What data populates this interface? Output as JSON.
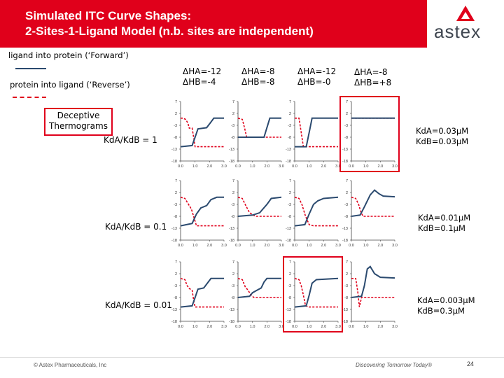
{
  "title": {
    "line1": "Simulated ITC Curve Shapes:",
    "line2": "2-Sites-1-Ligand Model (n.b. sites are independent)"
  },
  "logo": {
    "text": "astex"
  },
  "legend": {
    "forward": "ligand into protein (‘Forward’)",
    "reverse": "protein into ligand (‘Reverse’)",
    "forward_color": "#2b4a6f",
    "reverse_color": "#e0001b"
  },
  "deceptive": {
    "line1": "Deceptive",
    "line2": "Thermograms"
  },
  "columns": [
    {
      "ha": "ΔHA=-12",
      "hb": "ΔHB=-4"
    },
    {
      "ha": "ΔHA=-8",
      "hb": "ΔHB=-8"
    },
    {
      "ha": "ΔHA=-12",
      "hb": "ΔHB=-0"
    },
    {
      "ha": "ΔHA=-8",
      "hb": "ΔHB=+8"
    }
  ],
  "rows": [
    {
      "ratio": "KdA/KdB = 1",
      "kda": "KdA=0.03μM",
      "kdb": "KdB=0.03μM"
    },
    {
      "ratio": "KdA/KdB = 0.1",
      "kda": "KdA=0.01μM",
      "kdb": "KdB=0.1μM"
    },
    {
      "ratio": "KdA/KdB = 0.01",
      "kda": "KdA=0.003μM",
      "kdb": "KdB=0.3μM"
    }
  ],
  "footer": {
    "copyright": "© Astex Pharmaceuticals, Inc",
    "tagline": "Discovering Tomorrow Today®",
    "page": "24"
  },
  "chart_data": {
    "type": "line",
    "layout": "grid",
    "grid_rows": 3,
    "grid_cols": 4,
    "x_ticks": [
      "0.0",
      "1.0",
      "2.0",
      "3.0"
    ],
    "y_ticks": [
      "7",
      "2",
      "-3",
      "-8",
      "-13",
      "-18"
    ],
    "xlim": [
      0,
      3
    ],
    "ylim": [
      -18,
      7
    ],
    "highlighted_panels": [
      [
        0,
        3
      ],
      [
        2,
        2
      ]
    ],
    "series_names": [
      "ligand into protein (‘Forward’)",
      "protein into ligand (‘Reverse’)"
    ],
    "panels": [
      {
        "row": 0,
        "col": 0,
        "forward": [
          [
            0,
            -12
          ],
          [
            0.8,
            -11.5
          ],
          [
            1.0,
            -8
          ],
          [
            1.2,
            -4.5
          ],
          [
            1.8,
            -4
          ],
          [
            2.05,
            -2
          ],
          [
            2.3,
            0
          ],
          [
            3,
            0
          ]
        ],
        "reverse": [
          [
            0,
            0
          ],
          [
            0.15,
            0
          ],
          [
            0.35,
            -0.5
          ],
          [
            0.5,
            -2
          ],
          [
            0.6,
            -4.2
          ],
          [
            0.8,
            -4.2
          ],
          [
            0.9,
            -8
          ],
          [
            1.0,
            -12
          ],
          [
            3,
            -12
          ]
        ]
      },
      {
        "row": 0,
        "col": 1,
        "forward": [
          [
            0,
            -8
          ],
          [
            1.8,
            -8
          ],
          [
            2.0,
            -4
          ],
          [
            2.2,
            0
          ],
          [
            3,
            0
          ]
        ],
        "reverse": [
          [
            0,
            0
          ],
          [
            0.3,
            -0.5
          ],
          [
            0.45,
            -4
          ],
          [
            0.6,
            -8
          ],
          [
            3,
            -8
          ]
        ]
      },
      {
        "row": 0,
        "col": 2,
        "forward": [
          [
            0,
            -12
          ],
          [
            0.8,
            -12
          ],
          [
            1.0,
            -6
          ],
          [
            1.2,
            0
          ],
          [
            3,
            0
          ]
        ],
        "reverse": [
          [
            0,
            0
          ],
          [
            0.3,
            0
          ],
          [
            0.45,
            -6
          ],
          [
            0.6,
            -12
          ],
          [
            3,
            -12
          ]
        ]
      },
      {
        "row": 0,
        "col": 3,
        "forward": [
          [
            0,
            0
          ],
          [
            3,
            0
          ]
        ],
        "reverse": [
          [
            0,
            0
          ],
          [
            3,
            0
          ]
        ]
      },
      {
        "row": 1,
        "col": 0,
        "forward": [
          [
            0,
            -12
          ],
          [
            0.8,
            -11
          ],
          [
            1.1,
            -7
          ],
          [
            1.4,
            -4.5
          ],
          [
            1.8,
            -3.5
          ],
          [
            2.1,
            -1
          ],
          [
            2.5,
            0
          ],
          [
            3,
            0
          ]
        ],
        "reverse": [
          [
            0,
            0
          ],
          [
            0.3,
            -0.5
          ],
          [
            0.5,
            -2.5
          ],
          [
            0.75,
            -5
          ],
          [
            0.95,
            -9
          ],
          [
            1.1,
            -12
          ],
          [
            3,
            -12
          ]
        ]
      },
      {
        "row": 1,
        "col": 1,
        "forward": [
          [
            0,
            -8
          ],
          [
            1.0,
            -7.5
          ],
          [
            1.5,
            -6.5
          ],
          [
            2.0,
            -3
          ],
          [
            2.3,
            -0.5
          ],
          [
            3,
            0
          ]
        ],
        "reverse": [
          [
            0,
            0
          ],
          [
            0.3,
            -0.5
          ],
          [
            0.5,
            -3
          ],
          [
            0.8,
            -6.5
          ],
          [
            1.2,
            -8
          ],
          [
            3,
            -8
          ]
        ]
      },
      {
        "row": 1,
        "col": 2,
        "forward": [
          [
            0,
            -12
          ],
          [
            0.7,
            -11.5
          ],
          [
            1.0,
            -7
          ],
          [
            1.3,
            -3
          ],
          [
            1.6,
            -1.5
          ],
          [
            2.0,
            -0.5
          ],
          [
            3,
            0
          ]
        ],
        "reverse": [
          [
            0,
            0
          ],
          [
            0.3,
            -0.5
          ],
          [
            0.5,
            -3
          ],
          [
            0.75,
            -8
          ],
          [
            1.0,
            -11.5
          ],
          [
            1.3,
            -12
          ],
          [
            3,
            -12
          ]
        ]
      },
      {
        "row": 1,
        "col": 3,
        "forward": [
          [
            0,
            -8
          ],
          [
            0.6,
            -7.5
          ],
          [
            0.9,
            -4
          ],
          [
            1.3,
            1
          ],
          [
            1.6,
            3
          ],
          [
            1.9,
            1.5
          ],
          [
            2.2,
            0.5
          ],
          [
            3,
            0.2
          ]
        ],
        "reverse": [
          [
            0,
            0
          ],
          [
            0.3,
            -0.5
          ],
          [
            0.5,
            -3
          ],
          [
            0.65,
            -6
          ],
          [
            0.8,
            -8
          ],
          [
            3,
            -8
          ]
        ]
      },
      {
        "row": 2,
        "col": 0,
        "forward": [
          [
            0,
            -12
          ],
          [
            0.8,
            -11.5
          ],
          [
            1.0,
            -8
          ],
          [
            1.2,
            -4.5
          ],
          [
            1.6,
            -4
          ],
          [
            1.85,
            -2
          ],
          [
            2.1,
            0
          ],
          [
            3,
            0
          ]
        ],
        "reverse": [
          [
            0,
            0
          ],
          [
            0.3,
            -0.5
          ],
          [
            0.45,
            -3
          ],
          [
            0.6,
            -4.2
          ],
          [
            0.8,
            -5
          ],
          [
            0.9,
            -9
          ],
          [
            1.0,
            -12
          ],
          [
            3,
            -12
          ]
        ]
      },
      {
        "row": 2,
        "col": 1,
        "forward": [
          [
            0,
            -8
          ],
          [
            0.8,
            -7.5
          ],
          [
            1.0,
            -6
          ],
          [
            1.3,
            -5
          ],
          [
            1.6,
            -4
          ],
          [
            1.8,
            -1.5
          ],
          [
            2.0,
            0
          ],
          [
            3,
            0
          ]
        ],
        "reverse": [
          [
            0,
            0
          ],
          [
            0.3,
            -0.5
          ],
          [
            0.5,
            -3.5
          ],
          [
            0.7,
            -5
          ],
          [
            0.9,
            -7
          ],
          [
            1.1,
            -8
          ],
          [
            3,
            -8
          ]
        ]
      },
      {
        "row": 2,
        "col": 2,
        "forward": [
          [
            0,
            -12
          ],
          [
            0.8,
            -11.5
          ],
          [
            1.0,
            -7
          ],
          [
            1.2,
            -2
          ],
          [
            1.5,
            -0.5
          ],
          [
            3,
            0
          ]
        ],
        "reverse": [
          [
            0,
            0
          ],
          [
            0.3,
            -0.5
          ],
          [
            0.45,
            -3
          ],
          [
            0.6,
            -7
          ],
          [
            0.75,
            -11.5
          ],
          [
            1.0,
            -12
          ],
          [
            3,
            -12
          ]
        ]
      },
      {
        "row": 2,
        "col": 3,
        "forward": [
          [
            0,
            -8
          ],
          [
            0.7,
            -7.5
          ],
          [
            0.9,
            -3
          ],
          [
            1.1,
            4
          ],
          [
            1.3,
            5
          ],
          [
            1.6,
            2
          ],
          [
            2.0,
            0.5
          ],
          [
            3,
            0.2
          ]
        ],
        "reverse": [
          [
            0,
            0
          ],
          [
            0.3,
            0
          ],
          [
            0.45,
            -6
          ],
          [
            0.55,
            -12
          ],
          [
            0.7,
            -8
          ],
          [
            1.0,
            -8
          ],
          [
            3,
            -8
          ]
        ]
      }
    ]
  }
}
